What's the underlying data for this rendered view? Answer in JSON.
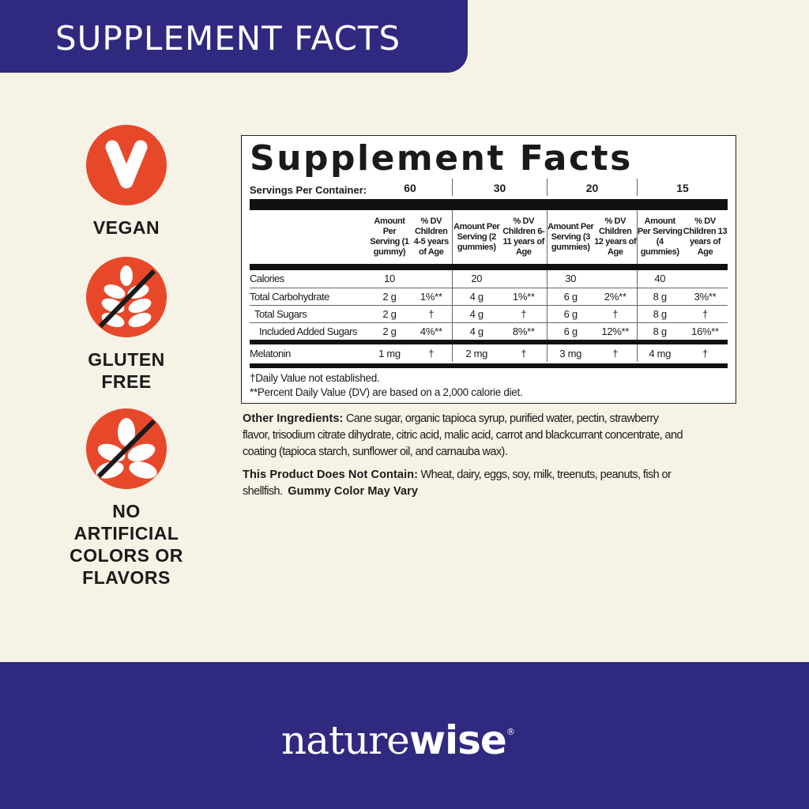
{
  "banner": {
    "title": "SUPPLEMENT FACTS"
  },
  "badges": [
    {
      "icon": "vegan-v-icon",
      "label": "VEGAN"
    },
    {
      "icon": "no-gluten-wheat-icon",
      "label": "GLUTEN FREE"
    },
    {
      "icon": "no-artificial-leaf-icon",
      "label": "NO ARTIFICIAL COLORS OR FLAVORS"
    }
  ],
  "facts": {
    "title": "Supplement Facts",
    "servings_label": "Servings Per Container:",
    "servings": [
      "60",
      "30",
      "20",
      "15"
    ],
    "headers": [
      [
        "Amount Per Serving (1 gummy)",
        "% DV Children 4-5 years of Age"
      ],
      [
        "Amount Per Serving (2 gummies)",
        "% DV Children 6-11 years of Age"
      ],
      [
        "Amount Per Serving (3 gummies)",
        "% DV Children 12 years of Age"
      ],
      [
        "Amount Per Serving (4 gummies)",
        "% DV Children 13 years of Age"
      ]
    ],
    "rows": [
      {
        "name": "Calories",
        "values": [
          "10",
          "",
          "20",
          "",
          "30",
          "",
          "40",
          ""
        ]
      },
      {
        "name": "Total Carbohydrate",
        "values": [
          "2 g",
          "1%**",
          "4 g",
          "1%**",
          "6 g",
          "2%**",
          "8 g",
          "3%**"
        ]
      },
      {
        "name": "Total Sugars",
        "values": [
          "2 g",
          "†",
          "4 g",
          "†",
          "6 g",
          "†",
          "8 g",
          "†"
        ]
      },
      {
        "name": "Included Added Sugars",
        "values": [
          "2 g",
          "4%**",
          "4 g",
          "8%**",
          "6 g",
          "12%**",
          "8 g",
          "16%**"
        ]
      },
      {
        "name": "Melatonin",
        "values": [
          "1 mg",
          "†",
          "2 mg",
          "†",
          "3 mg",
          "†",
          "4 mg",
          "†"
        ]
      }
    ],
    "footnote1": "†Daily Value not established.",
    "footnote2": "**Percent Daily Value (DV) are based on a 2,000 calorie diet."
  },
  "ingredients": {
    "label": "Other Ingredients:",
    "text": " Cane sugar, organic tapioca syrup, purified water, pectin, strawberry flavor, trisodium citrate dihydrate, citric acid, malic acid, carrot and blackcurrant concentrate, and coating (tapioca starch, sunflower oil, and carnauba wax)."
  },
  "not_contain": {
    "label": "This Product Does Not Contain:",
    "text": " Wheat, dairy, eggs, soy, milk, treenuts, peanuts, fish or shellfish.  ",
    "note": "Gummy Color May Vary"
  },
  "brand": {
    "part1": "nature",
    "part2": "wise",
    "reg": "®"
  },
  "colors": {
    "navy": "#2f2a80",
    "orange": "#e8482a",
    "cream": "#f6f3e6"
  }
}
